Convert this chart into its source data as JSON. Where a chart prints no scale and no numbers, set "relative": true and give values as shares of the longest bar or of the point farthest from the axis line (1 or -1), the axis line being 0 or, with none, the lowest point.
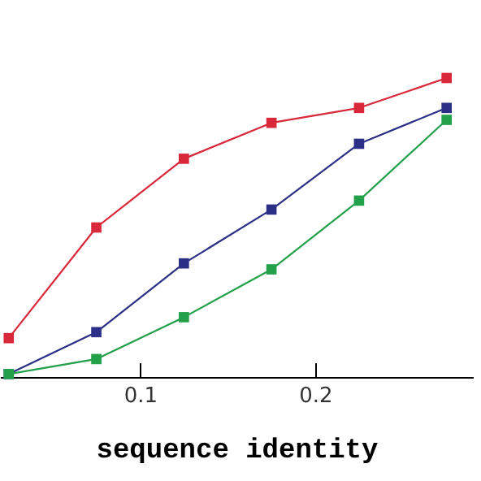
{
  "chart_data": {
    "type": "line",
    "xlabel": "sequence identity",
    "relative": true,
    "x": [
      0.025,
      0.075,
      0.125,
      0.175,
      0.225,
      0.275
    ],
    "xlim": [
      0.02,
      0.29
    ],
    "xticks": [
      0.1,
      0.2
    ],
    "marker": "square",
    "line_style": "solid",
    "series": [
      {
        "color": "#d8283a",
        "values": [
          0.13,
          0.5,
          0.73,
          0.85,
          0.9,
          1
        ]
      },
      {
        "color": "#2b2f86",
        "values": [
          0.01,
          0.15,
          0.38,
          0.56,
          0.78,
          0.9
        ]
      },
      {
        "color": "#22a04a",
        "values": [
          0.01,
          0.06,
          0.2,
          0.36,
          0.59,
          0.86
        ]
      }
    ]
  }
}
